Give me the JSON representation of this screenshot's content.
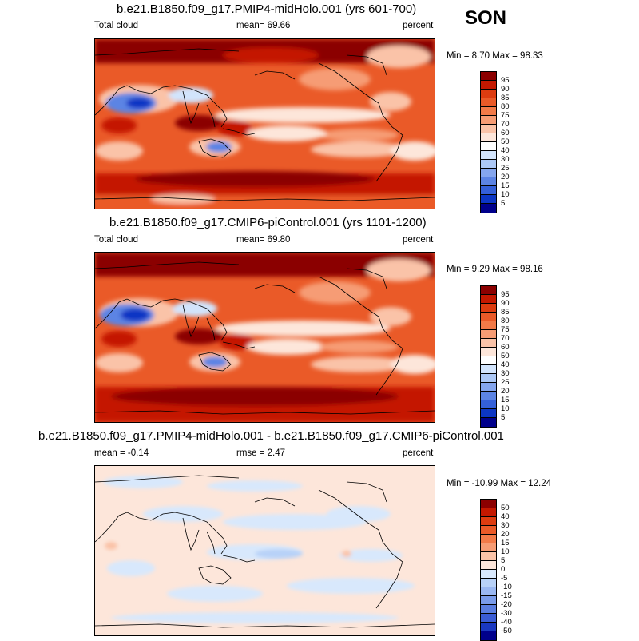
{
  "season": "SON",
  "units": "percent",
  "panels": [
    {
      "title": "b.e21.B1850.f09_g17.PMIP4-midHolo.001 (yrs 601-700)",
      "left_label": "Total cloud",
      "mid_label": "mean=  69.66",
      "right_label": "percent",
      "minmax": "Min =  8.70 Max =  98.33"
    },
    {
      "title": "b.e21.B1850.f09_g17.CMIP6-piControl.001 (yrs 1101-1200)",
      "left_label": "Total cloud",
      "mid_label": "mean=  69.80",
      "right_label": "percent",
      "minmax": "Min =  9.29 Max =  98.16"
    },
    {
      "title": "b.e21.B1850.f09_g17.PMIP4-midHolo.001 - b.e21.B1850.f09_g17.CMIP6-piControl.001",
      "left_label": "mean =  -0.14",
      "mid_label": "rmse =   2.47",
      "right_label": "percent",
      "minmax": "Min = -10.99 Max =  12.24"
    }
  ],
  "colorbars": {
    "cloud": {
      "labels": [
        "95",
        "90",
        "85",
        "80",
        "75",
        "70",
        "60",
        "50",
        "40",
        "30",
        "25",
        "20",
        "15",
        "10",
        "5"
      ],
      "colors": [
        "#8b0000",
        "#c41800",
        "#dd3c10",
        "#ea5a28",
        "#f27a48",
        "#f69c74",
        "#fac3a8",
        "#fde6da",
        "#ffffff",
        "#d2e4fc",
        "#acc8f6",
        "#85a6ee",
        "#5c84e4",
        "#3460d9",
        "#0c36c4",
        "#00008b"
      ]
    },
    "diff": {
      "labels": [
        "50",
        "40",
        "30",
        "20",
        "15",
        "10",
        "5",
        "0",
        "-5",
        "-10",
        "-15",
        "-20",
        "-30",
        "-40",
        "-50"
      ],
      "colors": [
        "#8b0000",
        "#c41800",
        "#dd3c10",
        "#ea5a28",
        "#f27a48",
        "#f69c74",
        "#fac3a8",
        "#fde6da",
        "#d8e8fc",
        "#b8d2f8",
        "#9ab8f2",
        "#7a9cea",
        "#5a7ee0",
        "#3a5cd4",
        "#1a38c0",
        "#00008b"
      ]
    }
  }
}
